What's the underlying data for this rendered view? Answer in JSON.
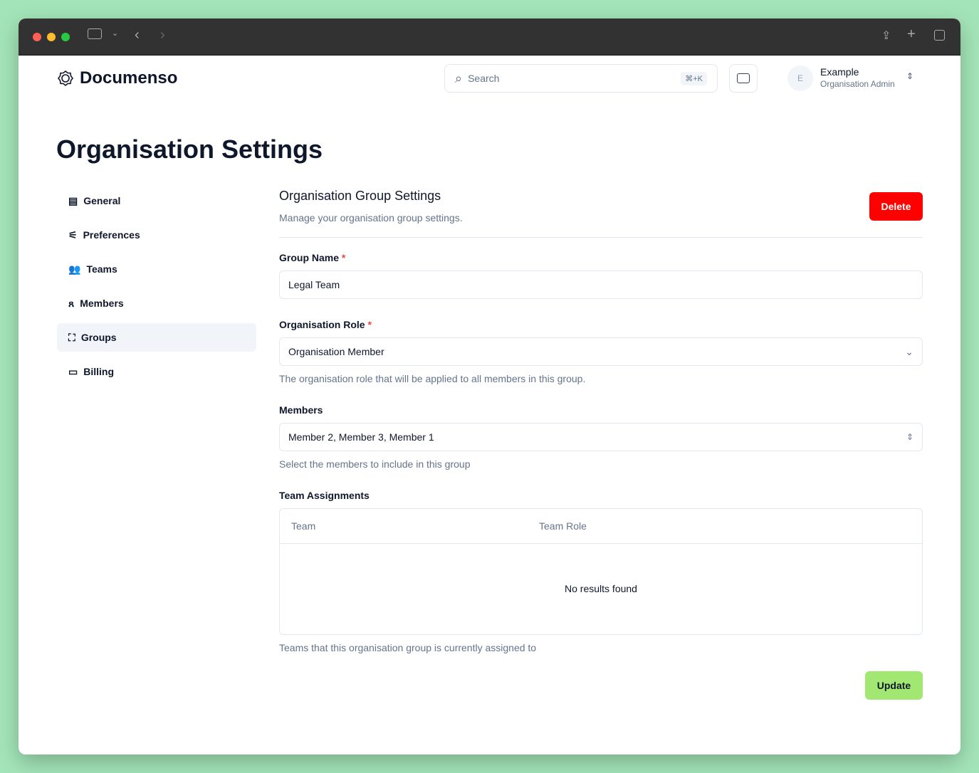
{
  "brand": {
    "name": "Documenso"
  },
  "header": {
    "search_placeholder": "Search",
    "shortcut": "⌘+K",
    "user_initial": "E",
    "user_name": "Example",
    "user_role": "Organisation Admin"
  },
  "page_title": "Organisation Settings",
  "sidebar": {
    "items": [
      {
        "label": "General",
        "icon": "building-icon"
      },
      {
        "label": "Preferences",
        "icon": "sliders-icon"
      },
      {
        "label": "Teams",
        "icon": "users-icon"
      },
      {
        "label": "Members",
        "icon": "user-group-icon"
      },
      {
        "label": "Groups",
        "icon": "group-icon",
        "active": true
      },
      {
        "label": "Billing",
        "icon": "credit-card-icon"
      }
    ]
  },
  "section": {
    "title": "Organisation Group Settings",
    "description": "Manage your organisation group settings.",
    "delete_label": "Delete"
  },
  "form": {
    "group_name": {
      "label": "Group Name",
      "value": "Legal Team"
    },
    "role": {
      "label": "Organisation Role",
      "value": "Organisation Member",
      "help": "The organisation role that will be applied to all members in this group."
    },
    "members": {
      "label": "Members",
      "value": "Member 2, Member 3, Member 1",
      "help": "Select the members to include in this group"
    },
    "teams": {
      "label": "Team Assignments",
      "columns": [
        "Team",
        "Team Role"
      ],
      "empty": "No results found",
      "help": "Teams that this organisation group is currently assigned to"
    },
    "update_label": "Update"
  },
  "colors": {
    "delete": "#ff0000",
    "update": "#a2e771"
  }
}
